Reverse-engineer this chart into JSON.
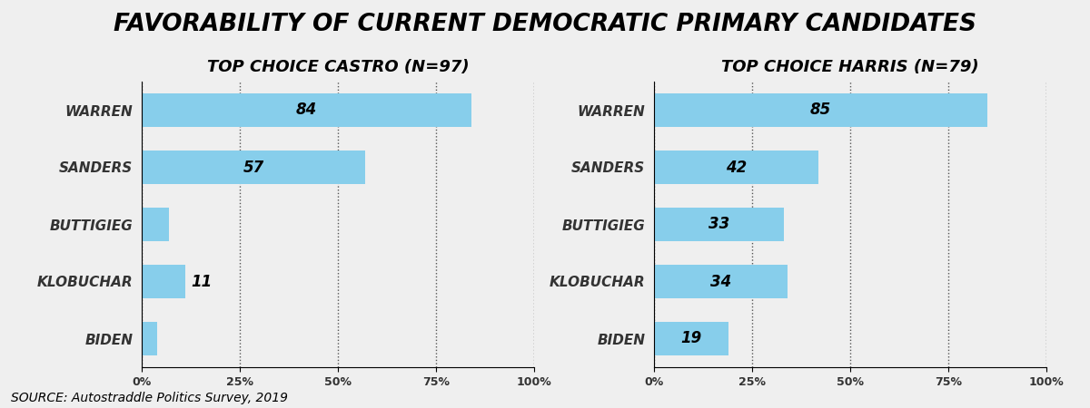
{
  "title": "FAVORABILITY OF CURRENT DEMOCRATIC PRIMARY CANDIDATES",
  "subtitle_left": "TOP CHOICE CASTRO (N=97)",
  "subtitle_right": "TOP CHOICE HARRIS (N=79)",
  "source": "SOURCE: Autostraddle Politics Survey, 2019",
  "candidates": [
    "WARREN",
    "SANDERS",
    "BUTTIGIEG",
    "KLOBUCHAR",
    "BIDEN"
  ],
  "castro_values": [
    84,
    57,
    7,
    11,
    4
  ],
  "harris_values": [
    85,
    42,
    33,
    34,
    19
  ],
  "castro_show_label": [
    true,
    true,
    false,
    true,
    false
  ],
  "harris_show_label": [
    true,
    true,
    true,
    true,
    true
  ],
  "bar_color": "#87CEEB",
  "background_color": "#EFEFEF",
  "xtick_labels": [
    "0%",
    "25%",
    "50%",
    "75%",
    "100%"
  ],
  "xtick_values": [
    0,
    25,
    50,
    75,
    100
  ],
  "title_fontsize": 19,
  "subtitle_fontsize": 13,
  "label_fontsize": 12,
  "candidate_fontsize": 11,
  "source_fontsize": 10
}
